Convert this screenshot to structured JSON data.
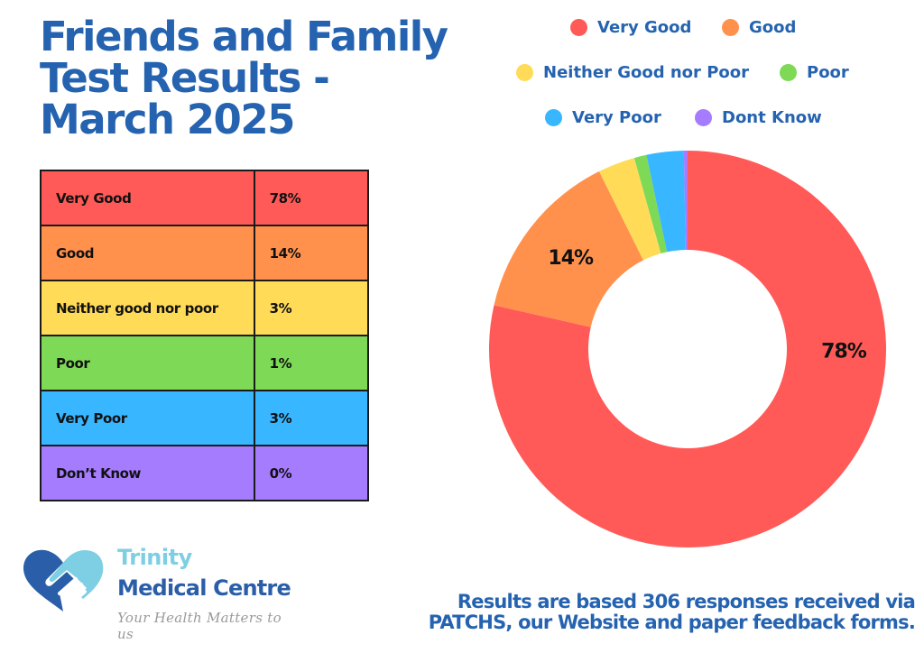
{
  "title": {
    "line1": "Friends and Family",
    "line2": "Test Results -",
    "line3": "March 2025"
  },
  "table": {
    "rows": [
      {
        "label": "Very Good",
        "value": "78%",
        "color": "#ff5a57"
      },
      {
        "label": "Good",
        "value": "14%",
        "color": "#ff914d"
      },
      {
        "label": "Neither good nor poor",
        "value": "3%",
        "color": "#ffdb58"
      },
      {
        "label": "Poor",
        "value": "1%",
        "color": "#7ed957"
      },
      {
        "label": "Very Poor",
        "value": "3%",
        "color": "#38b6ff"
      },
      {
        "label": "Don’t Know",
        "value": "0%",
        "color": "#a67cff"
      }
    ]
  },
  "legend": {
    "items": [
      {
        "label": "Very Good",
        "color": "#ff5a57"
      },
      {
        "label": "Good",
        "color": "#ff914d"
      },
      {
        "label": "Neither Good nor Poor",
        "color": "#ffdb58"
      },
      {
        "label": "Poor",
        "color": "#7ed957"
      },
      {
        "label": "Very Poor",
        "color": "#38b6ff"
      },
      {
        "label": "Dont Know",
        "color": "#a67cff"
      }
    ]
  },
  "chart_data": {
    "type": "pie",
    "variant": "donut",
    "title": "",
    "categories": [
      "Very Good",
      "Good",
      "Neither Good nor Poor",
      "Poor",
      "Very Poor",
      "Dont Know"
    ],
    "values": [
      78,
      14,
      3,
      1,
      3,
      0.3
    ],
    "unit": "%",
    "colors": [
      "#ff5a57",
      "#ff914d",
      "#ffdb58",
      "#7ed957",
      "#38b6ff",
      "#a67cff"
    ],
    "data_labels": [
      {
        "category": "Very Good",
        "text": "78%"
      },
      {
        "category": "Good",
        "text": "14%"
      }
    ],
    "legend_position": "top"
  },
  "logo": {
    "name_line1": "Trinity",
    "name_line2": "Medical Centre",
    "tagline": "Your Health Matters to us",
    "colors": {
      "dark": "#2a5ea8",
      "light": "#7ecfe3"
    }
  },
  "footnote": {
    "line1": "Results are based 306 responses received via",
    "line2": "PATCHS, our Website and paper feedback forms."
  },
  "accent_color": "#2563b0"
}
